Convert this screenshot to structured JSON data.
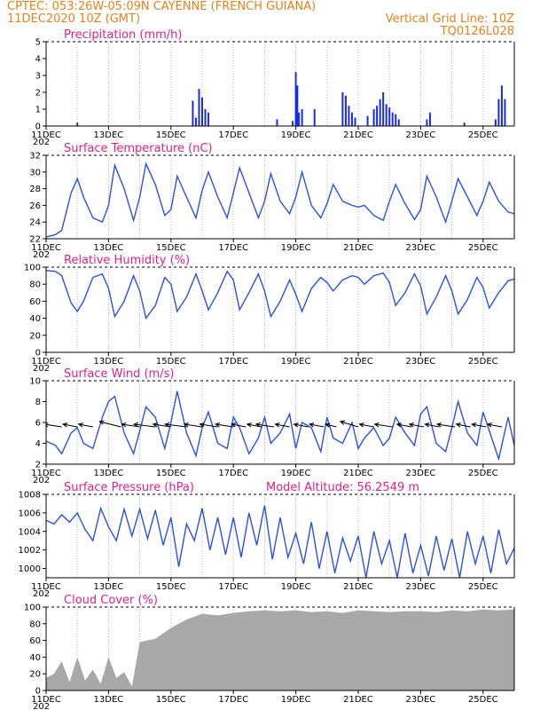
{
  "header": {
    "line1": "CPTEC:   053:26W-05:09N   CAYENNE (FRENCH GUIANA)",
    "line2_left": "11DEC2020 10Z (GMT)",
    "line2_right": "Vertical Grid Line: 10Z",
    "line3_right": "TQ0126L028"
  },
  "x_axis": {
    "tick_labels": [
      "11DEC",
      "13DEC",
      "15DEC",
      "17DEC",
      "19DEC",
      "21DEC",
      "23DEC",
      "25DEC"
    ],
    "tick_days": [
      0,
      2,
      4,
      6,
      8,
      10,
      12,
      14
    ],
    "start": "2020-12-11T00",
    "end": "2020-12-26T00",
    "year_prefix": "202"
  },
  "colors": {
    "series": "#2b50e6",
    "bars": "#1a2de6",
    "cloud": "#a8a8a8",
    "title": "#e0208a",
    "header": "#e8801a"
  },
  "chart_data": [
    {
      "type": "bar",
      "title": "Precipitation (mm/h)",
      "ylim": [
        0,
        5
      ],
      "yticks": [
        0,
        1,
        2,
        3,
        4,
        5
      ],
      "x_unit": "days since 11DEC 00Z",
      "x": [
        1.0,
        4.7,
        4.8,
        4.9,
        5.0,
        5.1,
        5.2,
        7.4,
        7.9,
        8.0,
        8.05,
        8.1,
        8.2,
        8.6,
        9.5,
        9.6,
        9.7,
        9.8,
        9.9,
        10.3,
        10.5,
        10.6,
        10.7,
        10.8,
        10.9,
        11.0,
        11.1,
        11.2,
        11.3,
        12.2,
        12.3,
        13.4,
        14.4,
        14.5,
        14.6,
        14.7
      ],
      "values": [
        0.2,
        1.5,
        0.5,
        2.2,
        1.7,
        1.0,
        0.8,
        0.4,
        0.3,
        3.2,
        2.4,
        0.8,
        1.0,
        1.0,
        2.0,
        1.8,
        1.2,
        0.8,
        0.5,
        0.6,
        1.0,
        1.2,
        1.6,
        2.0,
        1.3,
        1.1,
        0.8,
        0.7,
        0.4,
        0.4,
        0.8,
        0.2,
        0.4,
        1.6,
        2.4,
        1.6
      ]
    },
    {
      "type": "line",
      "title": "Surface Temperature (nC)",
      "ylim": [
        22,
        32
      ],
      "yticks": [
        22,
        24,
        26,
        28,
        30,
        32
      ],
      "series": [
        {
          "x": [
            0.0,
            0.3,
            0.5,
            0.8,
            1.0,
            1.2,
            1.5,
            1.8,
            2.0,
            2.2,
            2.5,
            2.8,
            3.0,
            3.2,
            3.5,
            3.8,
            4.0,
            4.2,
            4.5,
            4.8,
            5.0,
            5.2,
            5.5,
            5.8,
            6.0,
            6.2,
            6.5,
            6.8,
            7.0,
            7.2,
            7.5,
            7.8,
            8.0,
            8.2,
            8.5,
            8.8,
            9.0,
            9.2,
            9.5,
            9.8,
            10.0,
            10.2,
            10.5,
            10.8,
            11.0,
            11.2,
            11.5,
            11.8,
            12.0,
            12.2,
            12.5,
            12.8,
            13.0,
            13.2,
            13.5,
            13.8,
            14.0,
            14.2,
            14.5,
            14.8,
            15.0
          ],
          "values": [
            22.2,
            22.5,
            23.0,
            27.5,
            29.2,
            27.0,
            24.5,
            24.0,
            26.0,
            30.8,
            28.0,
            24.2,
            27.0,
            31.0,
            28.5,
            24.8,
            25.5,
            29.5,
            27.0,
            24.5,
            27.8,
            30.0,
            27.0,
            24.5,
            27.5,
            30.5,
            27.5,
            24.5,
            26.5,
            29.8,
            26.5,
            25.0,
            27.0,
            30.0,
            26.0,
            24.5,
            26.2,
            28.5,
            26.5,
            26.0,
            25.8,
            26.0,
            24.8,
            24.2,
            26.5,
            28.5,
            26.2,
            24.3,
            25.5,
            29.5,
            27.0,
            24.0,
            26.5,
            29.2,
            27.0,
            24.8,
            26.5,
            28.8,
            26.5,
            25.2,
            25.0
          ]
        }
      ]
    },
    {
      "type": "line",
      "title": "Relative Humidity (%)",
      "ylim": [
        0,
        100
      ],
      "yticks": [
        0,
        20,
        40,
        60,
        80,
        100
      ],
      "series": [
        {
          "x": [
            0.0,
            0.3,
            0.5,
            0.8,
            1.0,
            1.2,
            1.5,
            1.8,
            2.0,
            2.2,
            2.5,
            2.8,
            3.0,
            3.2,
            3.5,
            3.8,
            4.0,
            4.2,
            4.5,
            4.8,
            5.0,
            5.2,
            5.5,
            5.8,
            6.0,
            6.2,
            6.5,
            6.8,
            7.0,
            7.2,
            7.5,
            7.8,
            8.0,
            8.2,
            8.5,
            8.8,
            9.0,
            9.2,
            9.5,
            9.8,
            10.0,
            10.2,
            10.5,
            10.8,
            11.0,
            11.2,
            11.5,
            11.8,
            12.0,
            12.2,
            12.5,
            12.8,
            13.0,
            13.2,
            13.5,
            13.8,
            14.0,
            14.2,
            14.5,
            14.8,
            15.0
          ],
          "values": [
            96,
            95,
            90,
            58,
            48,
            60,
            88,
            92,
            75,
            42,
            60,
            90,
            72,
            40,
            55,
            88,
            80,
            48,
            65,
            92,
            72,
            50,
            70,
            95,
            85,
            50,
            70,
            92,
            72,
            42,
            60,
            85,
            68,
            48,
            75,
            88,
            82,
            72,
            85,
            90,
            88,
            80,
            90,
            93,
            82,
            55,
            70,
            92,
            78,
            45,
            65,
            90,
            72,
            45,
            62,
            88,
            76,
            52,
            70,
            84,
            86
          ]
        }
      ]
    },
    {
      "type": "line",
      "title": "Surface Wind (m/s)",
      "ylim": [
        2,
        10
      ],
      "yticks": [
        2,
        4,
        6,
        8,
        10
      ],
      "series": [
        {
          "x": [
            0.0,
            0.3,
            0.5,
            0.8,
            1.0,
            1.2,
            1.5,
            1.8,
            2.0,
            2.2,
            2.5,
            2.8,
            3.0,
            3.2,
            3.5,
            3.8,
            4.0,
            4.2,
            4.5,
            4.8,
            5.0,
            5.2,
            5.5,
            5.8,
            6.0,
            6.2,
            6.5,
            6.8,
            7.0,
            7.2,
            7.5,
            7.8,
            8.0,
            8.2,
            8.5,
            8.8,
            9.0,
            9.2,
            9.5,
            9.8,
            10.0,
            10.2,
            10.5,
            10.8,
            11.0,
            11.2,
            11.5,
            11.8,
            12.0,
            12.2,
            12.5,
            12.8,
            13.0,
            13.2,
            13.5,
            13.8,
            14.0,
            14.2,
            14.5,
            14.8,
            15.0
          ],
          "values": [
            4.2,
            3.8,
            3.0,
            5.0,
            5.5,
            4.0,
            3.5,
            6.5,
            8.0,
            8.5,
            5.0,
            3.0,
            5.2,
            7.5,
            6.5,
            3.5,
            6.0,
            9.0,
            5.0,
            2.8,
            5.5,
            7.0,
            4.0,
            3.5,
            6.5,
            5.5,
            3.0,
            4.5,
            6.5,
            4.0,
            5.0,
            6.8,
            3.5,
            6.0,
            5.5,
            3.2,
            6.5,
            4.5,
            4.0,
            6.0,
            3.5,
            4.5,
            5.5,
            3.8,
            4.5,
            6.5,
            5.0,
            3.8,
            6.8,
            7.5,
            4.0,
            3.2,
            5.5,
            8.0,
            5.0,
            3.8,
            7.0,
            5.2,
            2.5,
            6.5,
            3.8
          ]
        }
      ],
      "vectors": {
        "x": [
          0.5,
          1.0,
          1.5,
          2.4,
          3.0,
          3.5,
          4.0,
          4.5,
          5.0,
          5.5,
          6.0,
          6.4,
          6.9,
          7.3,
          7.8,
          8.4,
          8.9,
          9.3,
          10.0,
          10.5,
          11.1,
          11.7,
          12.1,
          12.6,
          13.1,
          13.6,
          14.1,
          14.6
        ],
        "u": [
          -5,
          -4,
          -4,
          -6,
          -5,
          -6,
          -5,
          -6,
          -5,
          -5,
          -5,
          -4,
          -4,
          -5,
          -4,
          -4,
          -4,
          -3,
          -5,
          -4,
          -5,
          -4,
          -4,
          -4,
          -5,
          -4,
          -4,
          -4
        ],
        "v": [
          1,
          1,
          1,
          2,
          1,
          1,
          1,
          1,
          1,
          1,
          1,
          1,
          1,
          1,
          1,
          1,
          1,
          1,
          2,
          1,
          1,
          1,
          1,
          1,
          1,
          1,
          1,
          1
        ]
      }
    },
    {
      "type": "line",
      "title": "Surface Pressure (hPa)",
      "annotation": "Model Altitude: 56.2549  m",
      "ylim": [
        999,
        1008
      ],
      "yticks": [
        1000,
        1002,
        1004,
        1006,
        1008
      ],
      "series": [
        {
          "x": [
            0.0,
            0.25,
            0.5,
            0.75,
            1.0,
            1.25,
            1.5,
            1.75,
            2.0,
            2.25,
            2.5,
            2.75,
            3.0,
            3.25,
            3.5,
            3.75,
            4.0,
            4.25,
            4.5,
            4.75,
            5.0,
            5.25,
            5.5,
            5.75,
            6.0,
            6.25,
            6.5,
            6.75,
            7.0,
            7.25,
            7.5,
            7.75,
            8.0,
            8.25,
            8.5,
            8.75,
            9.0,
            9.25,
            9.5,
            9.75,
            10.0,
            10.25,
            10.5,
            10.75,
            11.0,
            11.25,
            11.5,
            11.75,
            12.0,
            12.25,
            12.5,
            12.75,
            13.0,
            13.25,
            13.5,
            13.75,
            14.0,
            14.25,
            14.5,
            14.75,
            15.0
          ],
          "values": [
            1005.2,
            1004.8,
            1005.8,
            1005.0,
            1006.0,
            1004.2,
            1003.0,
            1006.5,
            1004.5,
            1003.0,
            1006.4,
            1003.5,
            1006.4,
            1003.2,
            1006.3,
            1002.5,
            1005.5,
            1000.2,
            1004.8,
            1003.0,
            1006.5,
            1002.0,
            1005.5,
            1001.5,
            1005.5,
            1001.2,
            1006.0,
            1002.5,
            1006.8,
            1001.0,
            1005.5,
            1001.2,
            1003.8,
            1000.5,
            1005.0,
            1000.0,
            1004.0,
            999.5,
            1003.3,
            1000.8,
            1003.5,
            999.0,
            1004.0,
            1000.5,
            1003.0,
            999.0,
            1003.8,
            999.5,
            1002.5,
            999.2,
            1003.5,
            999.8,
            1003.2,
            999.0,
            1004.0,
            1000.5,
            1003.5,
            999.5,
            1004.2,
            1000.5,
            1002.2
          ]
        }
      ]
    },
    {
      "type": "area",
      "title": "Cloud Cover (%)",
      "ylim": [
        0,
        100
      ],
      "yticks": [
        0,
        20,
        40,
        60,
        80,
        100
      ],
      "series": [
        {
          "x": [
            0.0,
            0.25,
            0.5,
            0.75,
            1.0,
            1.25,
            1.5,
            1.75,
            2.0,
            2.25,
            2.5,
            2.75,
            3.0,
            3.5,
            4.0,
            4.5,
            5.0,
            5.5,
            6.0,
            6.5,
            7.0,
            7.5,
            8.0,
            8.5,
            9.0,
            9.5,
            10.0,
            10.5,
            11.0,
            11.5,
            12.0,
            12.5,
            13.0,
            13.5,
            14.0,
            14.5,
            15.0
          ],
          "values": [
            15,
            20,
            35,
            10,
            40,
            12,
            25,
            8,
            40,
            15,
            22,
            5,
            58,
            62,
            75,
            85,
            92,
            90,
            93,
            95,
            96,
            95,
            96,
            94,
            95,
            93,
            96,
            95,
            94,
            95,
            95,
            94,
            96,
            95,
            97,
            96,
            97
          ]
        }
      ]
    }
  ]
}
